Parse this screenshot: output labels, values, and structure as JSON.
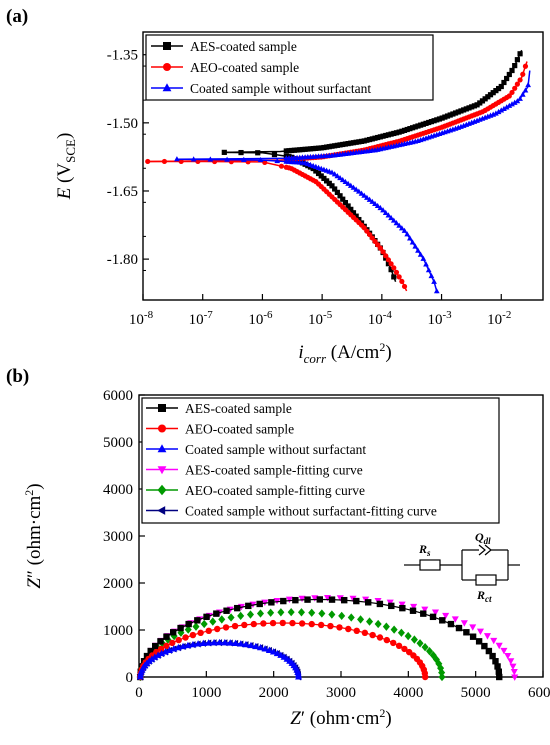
{
  "colors": {
    "aes": "#000000",
    "aeo": "#ff0000",
    "none": "#0000ff",
    "aes_fit": "#ff00ff",
    "aeo_fit": "#009900",
    "none_fit": "#000080"
  },
  "chart_data": [
    {
      "panel": "(a)",
      "type": "line",
      "xscale": "log",
      "xlim": [
        1e-08,
        0.05
      ],
      "ylim": [
        -1.3,
        -1.89
      ],
      "grid": false,
      "legend_position": "top-right",
      "ylabel": {
        "sym": "E",
        "pre": " (V",
        "sub": "SCE",
        "post": ")"
      },
      "xlabel": {
        "sym": "i",
        "sub": "corr",
        "post": " (A/cm",
        "sup": "2",
        "end": ")"
      },
      "yticks": [
        -1.35,
        -1.5,
        -1.65,
        -1.8
      ],
      "ytick_labels": [
        "-1.35",
        "-1.50",
        "-1.65",
        "-1.80"
      ],
      "xticks": [
        1e-08,
        1e-07,
        1e-06,
        1e-05,
        0.0001,
        0.001,
        0.01
      ],
      "xtick_labels": [
        {
          "base": "10",
          "exp": "-8"
        },
        {
          "base": "10",
          "exp": "-7"
        },
        {
          "base": "10",
          "exp": "-6"
        },
        {
          "base": "10",
          "exp": "-5"
        },
        {
          "base": "10",
          "exp": "-4"
        },
        {
          "base": "10",
          "exp": "-3"
        },
        {
          "base": "10",
          "exp": "-2"
        }
      ],
      "series": [
        {
          "name": "AES-coated sample",
          "marker": "square",
          "color_key": "aes",
          "cathodic": [
            [
              2.3e-07,
              -1.565
            ],
            [
              1e-06,
              -1.566
            ],
            [
              3e-06,
              -1.575
            ],
            [
              7e-06,
              -1.6
            ],
            [
              1.5e-05,
              -1.64
            ],
            [
              3e-05,
              -1.69
            ],
            [
              6e-05,
              -1.74
            ],
            [
              0.0001,
              -1.78
            ],
            [
              0.00014,
              -1.82
            ],
            [
              0.00017,
              -1.85
            ]
          ],
          "anodic": [
            [
              2.3e-07,
              -1.565
            ],
            [
              2e-06,
              -1.563
            ],
            [
              1e-05,
              -1.555
            ],
            [
              5e-05,
              -1.54
            ],
            [
              0.0002,
              -1.52
            ],
            [
              0.001,
              -1.49
            ],
            [
              0.004,
              -1.46
            ],
            [
              0.01,
              -1.42
            ],
            [
              0.016,
              -1.38
            ],
            [
              0.022,
              -1.34
            ]
          ]
        },
        {
          "name": "AEO-coated sample",
          "marker": "circle",
          "color_key": "aeo",
          "cathodic": [
            [
              1.2e-08,
              -1.585
            ],
            [
              1e-07,
              -1.585
            ],
            [
              1e-06,
              -1.586
            ],
            [
              3e-06,
              -1.6
            ],
            [
              8e-06,
              -1.63
            ],
            [
              2e-05,
              -1.68
            ],
            [
              5e-05,
              -1.73
            ],
            [
              0.0001,
              -1.78
            ],
            [
              0.00016,
              -1.82
            ],
            [
              0.00023,
              -1.855
            ],
            [
              0.00026,
              -1.87
            ]
          ],
          "anodic": [
            [
              1.2e-08,
              -1.585
            ],
            [
              2e-06,
              -1.582
            ],
            [
              1e-05,
              -1.575
            ],
            [
              5e-05,
              -1.56
            ],
            [
              0.0002,
              -1.54
            ],
            [
              0.001,
              -1.51
            ],
            [
              0.005,
              -1.475
            ],
            [
              0.014,
              -1.44
            ],
            [
              0.022,
              -1.4
            ],
            [
              0.027,
              -1.365
            ]
          ]
        },
        {
          "name": "Coated sample without surfactant",
          "marker": "triangle-up",
          "color_key": "none",
          "cathodic": [
            [
              3.7e-08,
              -1.58
            ],
            [
              1e-06,
              -1.582
            ],
            [
              5e-06,
              -1.588
            ],
            [
              1.5e-05,
              -1.61
            ],
            [
              4e-05,
              -1.65
            ],
            [
              0.0001,
              -1.69
            ],
            [
              0.00025,
              -1.74
            ],
            [
              0.0005,
              -1.8
            ],
            [
              0.00075,
              -1.85
            ],
            [
              0.00085,
              -1.875
            ]
          ],
          "anodic": [
            [
              3.7e-08,
              -1.58
            ],
            [
              3e-06,
              -1.578
            ],
            [
              1.5e-05,
              -1.572
            ],
            [
              8e-05,
              -1.56
            ],
            [
              0.0004,
              -1.54
            ],
            [
              0.002,
              -1.51
            ],
            [
              0.008,
              -1.48
            ],
            [
              0.02,
              -1.45
            ],
            [
              0.028,
              -1.42
            ],
            [
              0.03,
              -1.385
            ]
          ]
        }
      ]
    },
    {
      "panel": "(b)",
      "type": "scatter",
      "xlim": [
        0,
        6000
      ],
      "ylim": [
        0,
        6000
      ],
      "grid": false,
      "legend_position": "top-left",
      "xlabel": {
        "sym": "Z",
        "prime": "′",
        "post": " (ohm·cm",
        "sup": "2",
        "end": ")"
      },
      "ylabel": {
        "sym": "Z",
        "prime": "″",
        "post": " (ohm·cm",
        "sup": "2",
        "end": ")"
      },
      "xticks": [
        0,
        1000,
        2000,
        3000,
        4000,
        5000,
        6000
      ],
      "yticks": [
        0,
        1000,
        2000,
        3000,
        4000,
        5000,
        6000
      ],
      "series": [
        {
          "name": "AES-coated sample",
          "marker": "square",
          "color_key": "aes",
          "style": "markers+line",
          "Rs": 20,
          "Rct": 5330,
          "peak": 1650
        },
        {
          "name": "AEO-coated sample",
          "marker": "circle",
          "color_key": "aeo",
          "style": "markers+line",
          "Rs": 20,
          "Rct": 4230,
          "peak": 1150
        },
        {
          "name": "Coated sample without surfactant",
          "marker": "triangle-up",
          "color_key": "none",
          "style": "markers+line",
          "Rs": 20,
          "Rct": 2350,
          "peak": 730
        },
        {
          "name": "AES-coated sample-fitting curve",
          "marker": "triangle-down",
          "color_key": "aes_fit",
          "style": "markers",
          "Rs": 20,
          "Rct": 5560,
          "peak": 1690
        },
        {
          "name": "AEO-coated sample-fitting curve",
          "marker": "diamond",
          "color_key": "aeo_fit",
          "style": "markers",
          "Rs": 20,
          "Rct": 4480,
          "peak": 1380
        },
        {
          "name": "Coated sample without surfactant-fitting curve",
          "marker": "triangle-left",
          "color_key": "none_fit",
          "style": "markers",
          "Rs": 20,
          "Rct": 2350,
          "peak": 730
        }
      ],
      "circuit": {
        "rs": "R",
        "rs_sub": "s",
        "qdl": "Q",
        "qdl_sub": "dl",
        "rct": "R",
        "rct_sub": "ct"
      }
    }
  ]
}
